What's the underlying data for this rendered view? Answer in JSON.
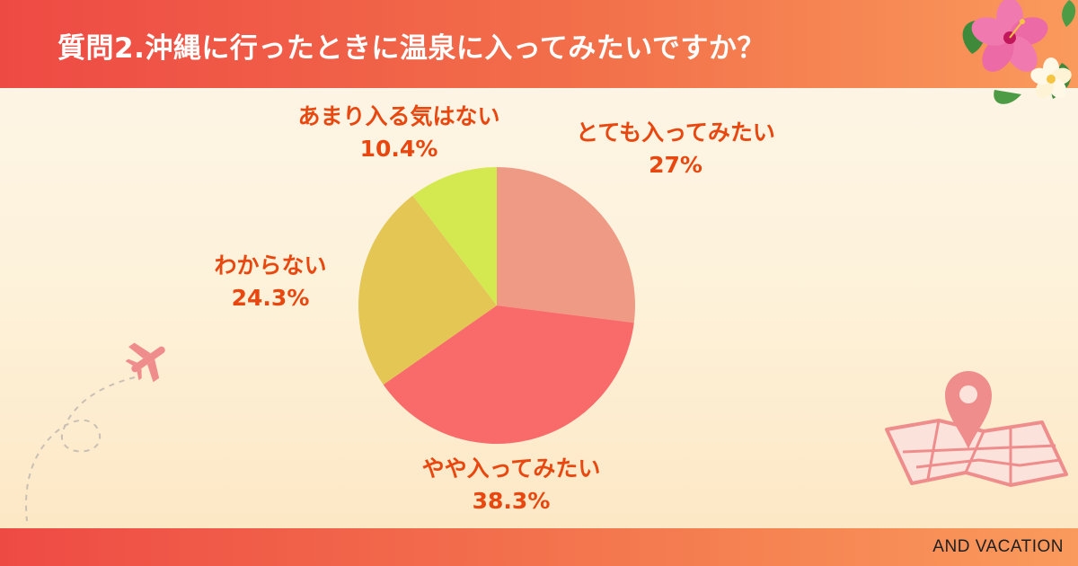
{
  "header": {
    "title": "質問2.沖縄に行ったときに温泉に入ってみたいですか？"
  },
  "footer": {
    "brand": "AND VACATION"
  },
  "chart_data": {
    "type": "pie",
    "title": "質問2.沖縄に行ったときに温泉に入ってみたいですか？",
    "slices": [
      {
        "label": "とても入ってみたい",
        "value": 27,
        "value_label": "27%",
        "color": "#ee9a85"
      },
      {
        "label": "やや入ってみたい",
        "value": 38.3,
        "value_label": "38.3%",
        "color": "#f96a6a"
      },
      {
        "label": "わからない",
        "value": 24.3,
        "value_label": "24.3%",
        "color": "#e3c653"
      },
      {
        "label": "あまり入る気はない",
        "value": 10.4,
        "value_label": "10.4%",
        "color": "#d4e950"
      }
    ],
    "start_angle": "12 o'clock",
    "direction": "clockwise"
  },
  "colors": {
    "header_gradient_start": "#ee4a44",
    "header_gradient_end": "#fa9a5c",
    "label_color": "#e8480f",
    "decor_pink": "#ef8d8d"
  },
  "decorations": [
    "hibiscus-flower-icon",
    "airplane-icon",
    "map-pin-icon",
    "map-icon"
  ]
}
